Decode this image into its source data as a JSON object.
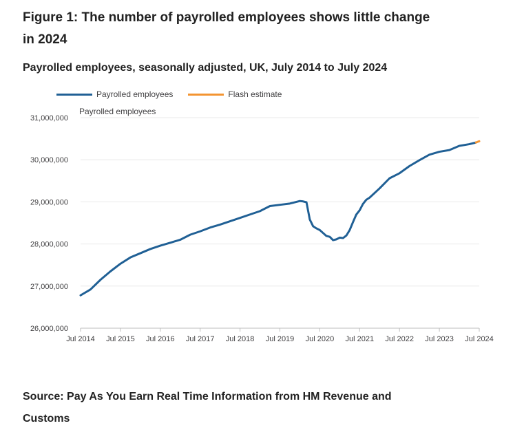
{
  "figure": {
    "title": "Figure 1: The number of payrolled employees shows little change in 2024",
    "subtitle": "Payrolled employees, seasonally adjusted, UK, July 2014 to July 2024",
    "source": "Source: Pay As You Earn Real Time Information from HM Revenue and Customs"
  },
  "legend": {
    "items": [
      {
        "label": "Payrolled employees",
        "color": "#206095"
      },
      {
        "label": "Flash estimate",
        "color": "#f39431"
      }
    ]
  },
  "chart_data": {
    "type": "line",
    "ylabel": "Payrolled employees",
    "xlabel": "",
    "ylim": [
      26000000,
      31000000
    ],
    "y_ticks": [
      {
        "value": 26000000,
        "label": "26,000,000"
      },
      {
        "value": 27000000,
        "label": "27,000,000"
      },
      {
        "value": 28000000,
        "label": "28,000,000"
      },
      {
        "value": 29000000,
        "label": "29,000,000"
      },
      {
        "value": 30000000,
        "label": "30,000,000"
      },
      {
        "value": 31000000,
        "label": "31,000,000"
      }
    ],
    "x_ticks": [
      "Jul 2014",
      "Jul 2015",
      "Jul 2016",
      "Jul 2017",
      "Jul 2018",
      "Jul 2019",
      "Jul 2020",
      "Jul 2021",
      "Jul 2022",
      "Jul 2023",
      "Jul 2024"
    ],
    "grid": true,
    "legend_position": "top-left",
    "series": [
      {
        "name": "Payrolled employees",
        "color": "#206095",
        "points": [
          [
            "Jul 2014",
            26780000
          ],
          [
            "Oct 2014",
            26920000
          ],
          [
            "Jan 2015",
            27150000
          ],
          [
            "Apr 2015",
            27350000
          ],
          [
            "Jul 2015",
            27530000
          ],
          [
            "Oct 2015",
            27680000
          ],
          [
            "Jan 2016",
            27780000
          ],
          [
            "Apr 2016",
            27880000
          ],
          [
            "Jul 2016",
            27960000
          ],
          [
            "Oct 2016",
            28030000
          ],
          [
            "Jan 2017",
            28100000
          ],
          [
            "Apr 2017",
            28220000
          ],
          [
            "Jul 2017",
            28300000
          ],
          [
            "Oct 2017",
            28390000
          ],
          [
            "Jan 2018",
            28460000
          ],
          [
            "Apr 2018",
            28540000
          ],
          [
            "Jul 2018",
            28620000
          ],
          [
            "Oct 2018",
            28700000
          ],
          [
            "Jan 2019",
            28780000
          ],
          [
            "Apr 2019",
            28900000
          ],
          [
            "Jul 2019",
            28930000
          ],
          [
            "Oct 2019",
            28960000
          ],
          [
            "Jan 2020",
            29020000
          ],
          [
            "Feb 2020",
            29010000
          ],
          [
            "Mar 2020",
            28990000
          ],
          [
            "Apr 2020",
            28580000
          ],
          [
            "May 2020",
            28420000
          ],
          [
            "Jun 2020",
            28370000
          ],
          [
            "Jul 2020",
            28330000
          ],
          [
            "Aug 2020",
            28260000
          ],
          [
            "Sep 2020",
            28190000
          ],
          [
            "Oct 2020",
            28170000
          ],
          [
            "Nov 2020",
            28090000
          ],
          [
            "Dec 2020",
            28110000
          ],
          [
            "Jan 2021",
            28150000
          ],
          [
            "Feb 2021",
            28140000
          ],
          [
            "Mar 2021",
            28200000
          ],
          [
            "Apr 2021",
            28330000
          ],
          [
            "May 2021",
            28520000
          ],
          [
            "Jun 2021",
            28700000
          ],
          [
            "Jul 2021",
            28800000
          ],
          [
            "Aug 2021",
            28950000
          ],
          [
            "Sep 2021",
            29050000
          ],
          [
            "Oct 2021",
            29100000
          ],
          [
            "Jan 2022",
            29320000
          ],
          [
            "Apr 2022",
            29560000
          ],
          [
            "Jul 2022",
            29680000
          ],
          [
            "Oct 2022",
            29850000
          ],
          [
            "Jan 2023",
            29990000
          ],
          [
            "Apr 2023",
            30120000
          ],
          [
            "Jul 2023",
            30190000
          ],
          [
            "Oct 2023",
            30230000
          ],
          [
            "Jan 2024",
            30330000
          ],
          [
            "Apr 2024",
            30370000
          ],
          [
            "Jun 2024",
            30410000
          ]
        ]
      },
      {
        "name": "Flash estimate",
        "color": "#f39431",
        "points": [
          [
            "Jun 2024",
            30410000
          ],
          [
            "Jul 2024",
            30440000
          ]
        ]
      }
    ]
  }
}
